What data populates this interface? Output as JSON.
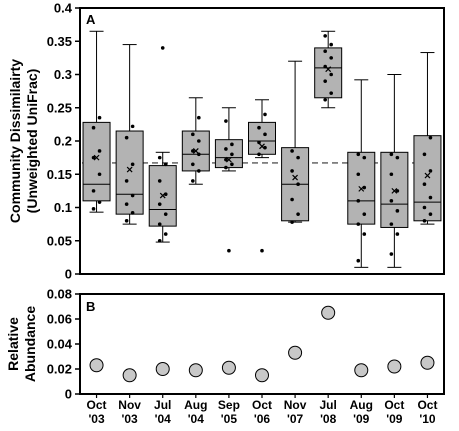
{
  "chart_data": [
    {
      "panel_label": "A",
      "type": "box",
      "ylabel_line1": "Community Dissimilairty",
      "ylabel_line2": "(Unweighted UniFrac)",
      "ylim": [
        0,
        0.4
      ],
      "yticks": [
        "0",
        "0.05",
        "0.1",
        "0.15",
        "0.2",
        "0.25",
        "0.3",
        "0.35",
        "0.4"
      ],
      "reference_line": 0.167,
      "box_color": "#b3b3b3",
      "boxes": [
        {
          "min": 0.093,
          "q1": 0.11,
          "median": 0.135,
          "q3": 0.228,
          "max": 0.365,
          "mean": 0.175,
          "points": [
            0.098,
            0.108,
            0.125,
            0.15,
            0.175,
            0.185,
            0.22,
            0.235
          ]
        },
        {
          "min": 0.075,
          "q1": 0.09,
          "median": 0.12,
          "q3": 0.215,
          "max": 0.345,
          "mean": 0.157,
          "points": [
            0.08,
            0.092,
            0.105,
            0.118,
            0.14,
            0.165,
            0.205,
            0.222
          ]
        },
        {
          "min": 0.048,
          "q1": 0.072,
          "median": 0.097,
          "q3": 0.163,
          "max": 0.183,
          "outliers": [
            0.34
          ],
          "mean": 0.118,
          "points": [
            0.05,
            0.06,
            0.075,
            0.09,
            0.105,
            0.12,
            0.14,
            0.165,
            0.175
          ]
        },
        {
          "min": 0.135,
          "q1": 0.155,
          "median": 0.18,
          "q3": 0.215,
          "max": 0.265,
          "mean": 0.185,
          "points": [
            0.14,
            0.155,
            0.165,
            0.18,
            0.185,
            0.2,
            0.21,
            0.235
          ]
        },
        {
          "min": 0.155,
          "q1": 0.16,
          "median": 0.175,
          "q3": 0.202,
          "max": 0.25,
          "outliers": [
            0.035
          ],
          "mean": 0.172,
          "points": [
            0.16,
            0.165,
            0.172,
            0.18,
            0.188,
            0.195,
            0.23
          ]
        },
        {
          "min": 0.175,
          "q1": 0.18,
          "median": 0.2,
          "q3": 0.228,
          "max": 0.262,
          "outliers": [
            0.035
          ],
          "mean": 0.192,
          "points": [
            0.18,
            0.19,
            0.198,
            0.21,
            0.22,
            0.24
          ]
        },
        {
          "min": 0.078,
          "q1": 0.08,
          "median": 0.135,
          "q3": 0.19,
          "max": 0.32,
          "mean": 0.145,
          "points": [
            0.078,
            0.09,
            0.112,
            0.135,
            0.155,
            0.175,
            0.185
          ]
        },
        {
          "min": 0.25,
          "q1": 0.265,
          "median": 0.31,
          "q3": 0.34,
          "max": 0.365,
          "mean": 0.308,
          "points": [
            0.262,
            0.272,
            0.29,
            0.3,
            0.312,
            0.325,
            0.335,
            0.345,
            0.358
          ]
        },
        {
          "min": 0.01,
          "q1": 0.075,
          "median": 0.11,
          "q3": 0.183,
          "max": 0.292,
          "mean": 0.128,
          "points": [
            0.02,
            0.06,
            0.075,
            0.09,
            0.11,
            0.13,
            0.15,
            0.175,
            0.18
          ]
        },
        {
          "min": 0.01,
          "q1": 0.07,
          "median": 0.105,
          "q3": 0.183,
          "max": 0.3,
          "mean": 0.125,
          "points": [
            0.03,
            0.06,
            0.075,
            0.095,
            0.11,
            0.125,
            0.15,
            0.175,
            0.18
          ]
        },
        {
          "min": 0.075,
          "q1": 0.08,
          "median": 0.108,
          "q3": 0.208,
          "max": 0.333,
          "mean": 0.148,
          "points": [
            0.08,
            0.09,
            0.1,
            0.115,
            0.135,
            0.155,
            0.18,
            0.205
          ]
        }
      ]
    },
    {
      "panel_label": "B",
      "type": "scatter",
      "ylabel_line1": "Relative",
      "ylabel_line2": "Abundance",
      "ylim": [
        0,
        0.08
      ],
      "yticks": [
        "0",
        "0.02",
        "0.04",
        "0.06",
        "0.08"
      ],
      "marker_color": "#c8c8c8",
      "categories": [
        {
          "month": "Oct",
          "year": "'03"
        },
        {
          "month": "Nov",
          "year": "'03"
        },
        {
          "month": "Jul",
          "year": "'04"
        },
        {
          "month": "Aug",
          "year": "'04"
        },
        {
          "month": "Sep",
          "year": "'05"
        },
        {
          "month": "Oct",
          "year": "'06"
        },
        {
          "month": "Nov",
          "year": "'07"
        },
        {
          "month": "Jul",
          "year": "'08"
        },
        {
          "month": "Aug",
          "year": "'09"
        },
        {
          "month": "Oct",
          "year": "'09"
        },
        {
          "month": "Oct",
          "year": "'10"
        }
      ],
      "values": [
        0.023,
        0.015,
        0.02,
        0.019,
        0.021,
        0.015,
        0.033,
        0.065,
        0.019,
        0.022,
        0.025
      ]
    }
  ]
}
